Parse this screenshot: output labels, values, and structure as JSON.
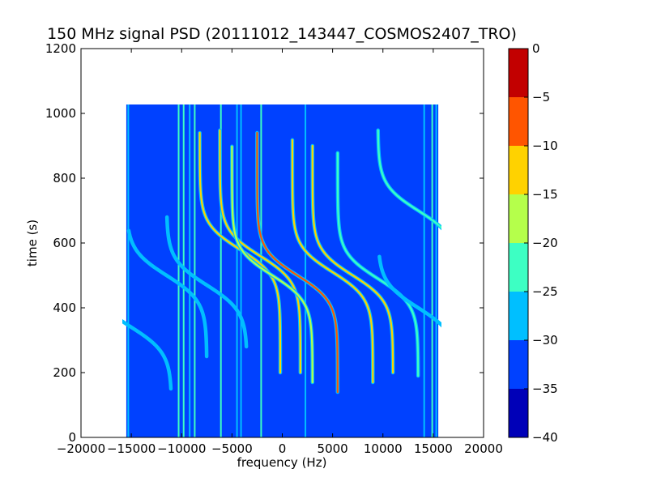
{
  "chart_data": {
    "type": "heatmap",
    "title": "150 MHz signal PSD (20111012_143447_COSMOS2407_TRO)",
    "xlabel": "frequency (Hz)",
    "ylabel": "time (s)",
    "xlim": [
      -20000,
      20000
    ],
    "ylim": [
      0,
      1200
    ],
    "x_ticks": [
      -20000,
      -15000,
      -10000,
      -5000,
      0,
      5000,
      10000,
      15000,
      20000
    ],
    "x_tick_labels": [
      "−20000",
      "−15000",
      "−10000",
      "−5000",
      "0",
      "5000",
      "10000",
      "15000",
      "20000"
    ],
    "y_ticks": [
      0,
      200,
      400,
      600,
      800,
      1000,
      1200
    ],
    "y_tick_labels": [
      "0",
      "200",
      "400",
      "600",
      "800",
      "1000",
      "1200"
    ],
    "data_extent": {
      "x": [
        -15500,
        15500
      ],
      "y": [
        0,
        1030
      ]
    },
    "background_level": -33,
    "colorbar": {
      "min": -40,
      "max": 0,
      "levels": [
        -40,
        -35,
        -30,
        -25,
        -20,
        -15,
        -10,
        -5,
        0
      ],
      "tick_labels": [
        "−40",
        "−35",
        "−30",
        "−25",
        "−20",
        "−15",
        "−10",
        "−5",
        "0"
      ],
      "colors": [
        "#0000b8",
        "#0041ff",
        "#00bfff",
        "#3dffc3",
        "#b5ff4b",
        "#ffd200",
        "#ff5500",
        "#c20000"
      ]
    },
    "vertical_lines": [
      {
        "x": -15300,
        "level": -28
      },
      {
        "x": -10300,
        "level": -25
      },
      {
        "x": -9800,
        "level": -25
      },
      {
        "x": -9200,
        "level": -28
      },
      {
        "x": -8700,
        "level": -25
      },
      {
        "x": -6100,
        "level": -25
      },
      {
        "x": -4500,
        "level": -28
      },
      {
        "x": -4100,
        "level": -28
      },
      {
        "x": -2100,
        "level": -25
      },
      {
        "x": 2300,
        "level": -28
      },
      {
        "x": 14100,
        "level": -28
      },
      {
        "x": 14900,
        "level": -25
      },
      {
        "x": 15300,
        "level": -28
      }
    ],
    "tracks": [
      {
        "center": [
          -11500,
          500
        ],
        "slope": -0.052,
        "half_width": 4000,
        "t_range": [
          250,
          640
        ],
        "level": -27
      },
      {
        "center": [
          -15000,
          340
        ],
        "slope": -0.045,
        "half_width": 4000,
        "t_range": [
          150,
          530
        ],
        "level": -28
      },
      {
        "center": [
          -7500,
          470
        ],
        "slope": -0.055,
        "half_width": 4000,
        "t_range": [
          280,
          680
        ],
        "level": -28
      },
      {
        "center": [
          -4200,
          580
        ],
        "slope": -0.05,
        "half_width": 4000,
        "t_range": [
          200,
          940
        ],
        "level": -15
      },
      {
        "center": [
          -2200,
          560
        ],
        "slope": -0.05,
        "half_width": 4000,
        "t_range": [
          200,
          950
        ],
        "level": -13
      },
      {
        "center": [
          -1000,
          500
        ],
        "slope": -0.05,
        "half_width": 4000,
        "t_range": [
          170,
          900
        ],
        "level": -20
      },
      {
        "center": [
          1500,
          500
        ],
        "slope": -0.05,
        "half_width": 4000,
        "t_range": [
          140,
          940
        ],
        "level": -7
      },
      {
        "center": [
          5000,
          510
        ],
        "slope": -0.05,
        "half_width": 4000,
        "t_range": [
          170,
          920
        ],
        "level": -13
      },
      {
        "center": [
          7000,
          500
        ],
        "slope": -0.05,
        "half_width": 4000,
        "t_range": [
          200,
          900
        ],
        "level": -15
      },
      {
        "center": [
          9500,
          490
        ],
        "slope": -0.05,
        "half_width": 4000,
        "t_range": [
          190,
          880
        ],
        "level": -24
      },
      {
        "center": [
          13500,
          400
        ],
        "slope": -0.05,
        "half_width": 4000,
        "t_range": [
          250,
          560
        ],
        "level": -30
      },
      {
        "center": [
          13500,
          700
        ],
        "slope": -0.05,
        "half_width": 4000,
        "t_range": [
          520,
          950
        ],
        "level": -23
      }
    ]
  }
}
